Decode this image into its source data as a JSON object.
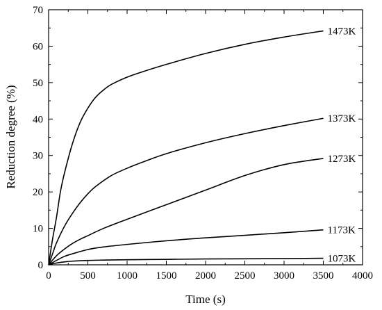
{
  "chart_data": {
    "type": "line",
    "title": "",
    "xlabel": "Time (s)",
    "ylabel": "Reduction degree (%)",
    "xlim": [
      0,
      4000
    ],
    "ylim": [
      0,
      70
    ],
    "x_ticks": [
      0,
      500,
      1000,
      1500,
      2000,
      2500,
      3000,
      3500,
      4000
    ],
    "y_ticks": [
      0,
      10,
      20,
      30,
      40,
      50,
      60,
      70
    ],
    "grid": false,
    "legend": "none",
    "line_color": "#000000",
    "series": [
      {
        "name": "1473K",
        "x": [
          0,
          50,
          100,
          150,
          200,
          300,
          400,
          500,
          600,
          700,
          800,
          1000,
          1200,
          1500,
          2000,
          2500,
          3000,
          3500
        ],
        "y": [
          0,
          7,
          13,
          20,
          25,
          33,
          39,
          43,
          46,
          48,
          49.5,
          51.5,
          53,
          55,
          58,
          60.5,
          62.5,
          64.2
        ]
      },
      {
        "name": "1373K",
        "x": [
          0,
          50,
          100,
          200,
          300,
          400,
          500,
          600,
          800,
          1000,
          1200,
          1500,
          2000,
          2500,
          3000,
          3500
        ],
        "y": [
          0,
          3,
          6,
          10.5,
          14,
          17,
          19.5,
          21.5,
          24.5,
          26.5,
          28.2,
          30.5,
          33.5,
          36,
          38.2,
          40.2
        ]
      },
      {
        "name": "1273K",
        "x": [
          0,
          100,
          200,
          300,
          400,
          500,
          700,
          1000,
          1500,
          2000,
          2500,
          3000,
          3500
        ],
        "y": [
          0,
          2.5,
          4.3,
          5.8,
          7,
          8,
          10,
          12.5,
          16.5,
          20.5,
          24.5,
          27.5,
          29.2
        ]
      },
      {
        "name": "1173K",
        "x": [
          0,
          100,
          200,
          300,
          500,
          700,
          1000,
          1500,
          2000,
          2500,
          3000,
          3500
        ],
        "y": [
          0,
          1.2,
          2.3,
          3,
          4.2,
          4.9,
          5.6,
          6.6,
          7.4,
          8.1,
          8.8,
          9.6
        ]
      },
      {
        "name": "1073K",
        "x": [
          0,
          100,
          200,
          300,
          500,
          700,
          1000,
          1500,
          2000,
          2500,
          3000,
          3500
        ],
        "y": [
          0,
          0.5,
          0.8,
          1.0,
          1.2,
          1.3,
          1.4,
          1.5,
          1.6,
          1.65,
          1.7,
          1.8
        ]
      }
    ]
  }
}
